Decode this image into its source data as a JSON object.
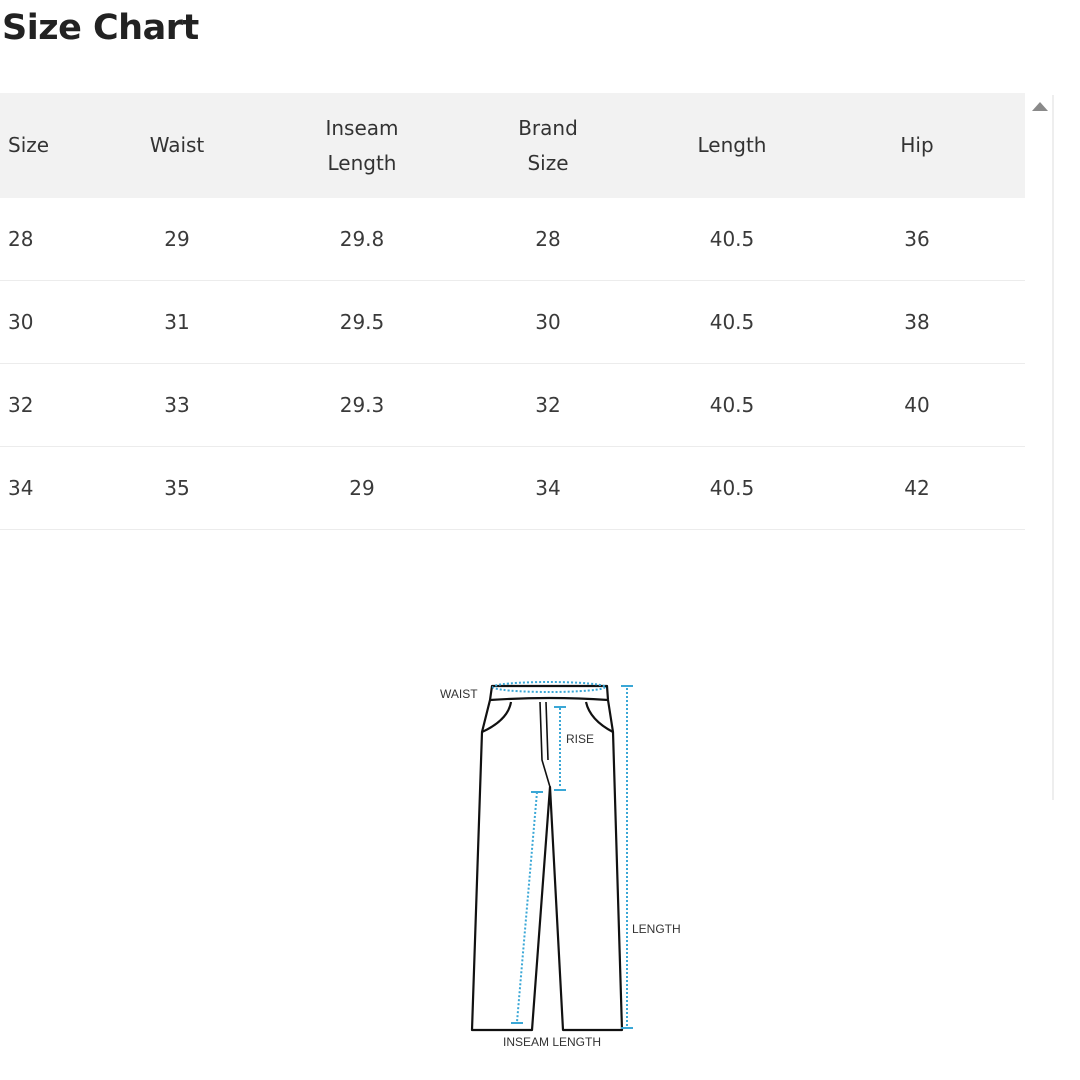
{
  "title": "Size Chart",
  "table": {
    "headers": [
      [
        "Size",
        ""
      ],
      [
        "Waist",
        ""
      ],
      [
        "Inseam",
        "Length"
      ],
      [
        "Brand",
        "Size"
      ],
      [
        "Length",
        ""
      ],
      [
        "Hip",
        ""
      ]
    ],
    "rows": [
      [
        "28",
        "29",
        "29.8",
        "28",
        "40.5",
        "36"
      ],
      [
        "30",
        "31",
        "29.5",
        "30",
        "40.5",
        "38"
      ],
      [
        "32",
        "33",
        "29.3",
        "32",
        "40.5",
        "40"
      ],
      [
        "34",
        "35",
        "29",
        "34",
        "40.5",
        "42"
      ]
    ]
  },
  "diagram": {
    "waist": "WAIST",
    "rise": "RISE",
    "length": "LENGTH",
    "inseam": "INSEAM LENGTH",
    "accent": "#3aa7d6"
  },
  "scrollbar": {
    "icon": "arrow-up-icon"
  }
}
